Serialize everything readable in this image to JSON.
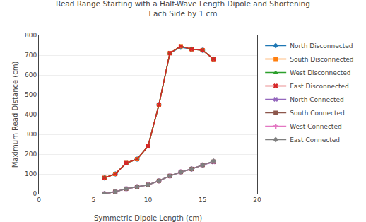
{
  "chart_data": {
    "type": "line",
    "title": "Read Range Starting with a Half-Wave Length Dipole and Shortening\nEach Side by 1 cm",
    "x_label": "Symmetric Dipole Length (cm)",
    "y_label": "Maximum Read Distance (cm)",
    "x": [
      6,
      7,
      8,
      9,
      10,
      11,
      12,
      13,
      14,
      15,
      16
    ],
    "xlim": [
      0,
      20
    ],
    "ylim": [
      0,
      800
    ],
    "xticks": [
      0,
      5,
      10,
      15,
      20
    ],
    "yticks": [
      0,
      100,
      200,
      300,
      400,
      500,
      600,
      700,
      800
    ],
    "grid": "y",
    "legend": "right",
    "series": [
      {
        "name": "North Disconnected",
        "marker": "diamond",
        "values": [
          80,
          100,
          155,
          175,
          240,
          450,
          710,
          740,
          730,
          725,
          680
        ]
      },
      {
        "name": "South Disconnected",
        "marker": "square",
        "values": [
          80,
          100,
          155,
          175,
          240,
          450,
          710,
          745,
          730,
          725,
          680
        ]
      },
      {
        "name": "West Disconnected",
        "marker": "triangle",
        "values": [
          80,
          100,
          155,
          175,
          240,
          450,
          710,
          745,
          730,
          725,
          680
        ]
      },
      {
        "name": "East Disconnected",
        "marker": "x",
        "values": [
          80,
          100,
          155,
          175,
          240,
          450,
          710,
          745,
          730,
          725,
          680
        ]
      },
      {
        "name": "North Connected",
        "marker": "x",
        "values": [
          0,
          10,
          25,
          35,
          45,
          65,
          90,
          110,
          125,
          145,
          160
        ]
      },
      {
        "name": "South Connected",
        "marker": "square",
        "values": [
          0,
          10,
          25,
          35,
          45,
          65,
          90,
          110,
          125,
          145,
          162
        ]
      },
      {
        "name": "West Connected",
        "marker": "plus",
        "values": [
          0,
          10,
          25,
          35,
          45,
          65,
          90,
          110,
          125,
          145,
          163
        ]
      },
      {
        "name": "East Connected",
        "marker": "diamond",
        "values": [
          0,
          10,
          25,
          35,
          45,
          65,
          90,
          110,
          125,
          145,
          165
        ]
      }
    ]
  }
}
